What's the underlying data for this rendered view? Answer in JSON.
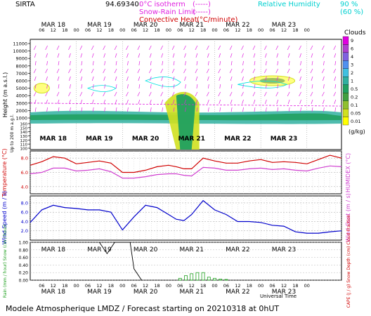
{
  "header": {
    "station": "SIRTA",
    "station_code": "94.69340",
    "iso_label": "0°C isotherm",
    "iso_key": "(-----)",
    "snow_rain_label": "Snow-Rain Limit",
    "snow_rain_key": "(-----)",
    "convective_label": "Convective Heat.",
    "convective_key": "(°C/minute)",
    "rh_label": "Relative Humidity",
    "rh_90": "90 %",
    "rh_60": "(60 %)"
  },
  "footer": {
    "universal_time": "Universal Time",
    "caption": "Modele Atmospherique LMDZ / Forecast starting on 20210318 at 0hUT"
  },
  "days": [
    "MAR 18",
    "MAR 19",
    "MAR 20",
    "MAR 21",
    "MAR 22",
    "MAR 23"
  ],
  "hours": [
    "06",
    "12",
    "18",
    "00"
  ],
  "colors": {
    "temperature": "#d00000",
    "humidex": "#d040d0",
    "wind": "#0000cc",
    "rain": "#20a020",
    "snow": "#000000",
    "axis_left_red": "#d00000",
    "axis_left_green": "#20a020",
    "axis_right_magenta": "#d040d0",
    "arrows": "#e020e0",
    "rh": "#00e0e0"
  },
  "chart_data": [
    {
      "type": "heatmap",
      "name": "clouds",
      "ylabel": "Height (m a.s.l.)",
      "ylabel2": "Up to 200 m a.g.l.",
      "yticks_upper": [
        "11000",
        "10000",
        "9000",
        "8000",
        "7000",
        "6000",
        "5000",
        "4000",
        "3000",
        "2000",
        "1000"
      ],
      "yticks_lower": [
        "160",
        "150",
        "140",
        "130",
        "120",
        "110",
        "100"
      ],
      "colorbar_title": "Clouds",
      "colorbar_unit": "(g/kg)",
      "colorbar_ticks": [
        "9",
        "6",
        "4",
        "3",
        "2",
        "1",
        "0.5",
        "0.2",
        "0.1",
        "0.05",
        "0.01"
      ],
      "colorbar_colors": [
        "#e000e0",
        "#b040d0",
        "#8060e0",
        "#5090f0",
        "#40c0e0",
        "#30b0a0",
        "#20a060",
        "#40a040",
        "#90c030",
        "#d0e020",
        "#ffff00"
      ]
    },
    {
      "type": "line",
      "name": "temperature",
      "ylabel_left": "Temperature (°C)",
      "ylabel_right": "HUMIDEX (°C)",
      "yticks": [
        "8.0",
        "6.0",
        "4.0"
      ],
      "ylim": [
        3,
        9
      ],
      "x": [
        0,
        6,
        12,
        18,
        24,
        30,
        36,
        42,
        48,
        54,
        60,
        66,
        72,
        76,
        80,
        84,
        90,
        96,
        102,
        108,
        114,
        120,
        126,
        132,
        138,
        144,
        150,
        156,
        162
      ],
      "series": [
        {
          "name": "Temperature",
          "values": [
            7.0,
            7.5,
            8.2,
            8.0,
            7.2,
            7.4,
            7.6,
            7.3,
            6.0,
            6.0,
            6.3,
            6.8,
            7.0,
            6.8,
            6.5,
            6.5,
            8.0,
            7.6,
            7.3,
            7.3,
            7.6,
            7.8,
            7.4,
            7.5,
            7.4,
            7.2,
            7.8,
            8.4,
            8.0
          ]
        },
        {
          "name": "Humidex",
          "values": [
            5.8,
            6.0,
            6.6,
            6.6,
            6.2,
            6.3,
            6.5,
            6.1,
            5.2,
            5.2,
            5.4,
            5.7,
            5.8,
            5.8,
            5.6,
            5.5,
            6.7,
            6.6,
            6.3,
            6.3,
            6.5,
            6.6,
            6.4,
            6.5,
            6.3,
            6.2,
            6.6,
            6.9,
            6.8
          ]
        }
      ]
    },
    {
      "type": "line",
      "name": "wind",
      "ylabel_left": "Wind Speed (m / s)",
      "ylabel_right": "Wind Gust (m / s)",
      "yticks": [
        "8.0",
        "6.0",
        "4.0",
        "2.0"
      ],
      "ylim": [
        0,
        9.5
      ],
      "x": [
        0,
        6,
        12,
        18,
        24,
        30,
        36,
        42,
        48,
        54,
        60,
        66,
        72,
        76,
        80,
        84,
        90,
        96,
        102,
        108,
        114,
        120,
        126,
        132,
        138,
        144,
        150,
        156,
        162
      ],
      "series": [
        {
          "name": "Wind Speed",
          "values": [
            3.8,
            6.5,
            7.5,
            7.0,
            6.8,
            6.5,
            6.5,
            6.0,
            2.2,
            5.0,
            7.5,
            7.0,
            5.5,
            4.5,
            4.2,
            5.5,
            8.5,
            6.5,
            5.5,
            4.0,
            4.0,
            3.8,
            3.2,
            3.0,
            1.8,
            1.5,
            1.5,
            1.8,
            2.0
          ]
        }
      ]
    },
    {
      "type": "bar",
      "name": "precipitation",
      "ylabel_left": "Rain (mm / hour) Snow (cm / hour)",
      "ylabel_right": "CAPE (J / g) Snow Depth (cm) Cloud Fraction",
      "yticks": [
        "1.00",
        "0.80",
        "0.60",
        "0.40",
        "0.20",
        "0.00"
      ],
      "ylim": [
        0,
        1.0
      ],
      "x": [
        78,
        81,
        84,
        87,
        90,
        93,
        96,
        99,
        102
      ],
      "series": [
        {
          "name": "Rain",
          "values": [
            0.05,
            0.12,
            0.17,
            0.2,
            0.2,
            0.08,
            0.05,
            0.03,
            0.02
          ]
        },
        {
          "name": "Snow Depth",
          "points": [
            [
              36,
              1.0
            ],
            [
              40,
              0.7
            ],
            [
              44,
              1.0
            ],
            [
              52,
              1.0
            ],
            [
              54,
              0.3
            ],
            [
              58,
              0.0
            ]
          ]
        }
      ]
    }
  ]
}
